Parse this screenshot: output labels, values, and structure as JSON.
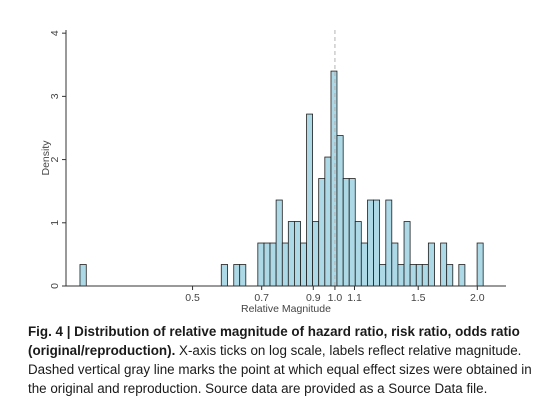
{
  "chart_data": {
    "type": "bar",
    "xlabel": "Relative Magnitude",
    "ylabel": "Density",
    "x_scale": "log",
    "x_ticks": [
      {
        "value": 0.5,
        "label": "0.5"
      },
      {
        "value": 0.7,
        "label": "0.7"
      },
      {
        "value": 0.9,
        "label": "0.9"
      },
      {
        "value": 1.0,
        "label": "1.0"
      },
      {
        "value": 1.1,
        "label": "1.1"
      },
      {
        "value": 1.5,
        "label": "1.5"
      },
      {
        "value": 2.0,
        "label": "2.0"
      }
    ],
    "y_ticks": [
      {
        "value": 0,
        "label": "0"
      },
      {
        "value": 1,
        "label": "1"
      },
      {
        "value": 2,
        "label": "2"
      },
      {
        "value": 3,
        "label": "3"
      },
      {
        "value": 4,
        "label": "4"
      }
    ],
    "xlim": [
      0.27,
      2.3
    ],
    "ylim": [
      0,
      4.05
    ],
    "bar_fill": "#add8e6",
    "bar_stroke": "#1f1f1f",
    "reference_line": {
      "x": 1.0,
      "color": "#b3b3b3",
      "style": "dashed"
    },
    "grid": false,
    "bars": [
      {
        "x0": 0.289,
        "x1": 0.298,
        "density": 0.34
      },
      {
        "x0": 0.575,
        "x1": 0.593,
        "density": 0.34
      },
      {
        "x0": 0.611,
        "x1": 0.629,
        "density": 0.34
      },
      {
        "x0": 0.629,
        "x1": 0.648,
        "density": 0.34
      },
      {
        "x0": 0.687,
        "x1": 0.708,
        "density": 0.68
      },
      {
        "x0": 0.708,
        "x1": 0.729,
        "density": 0.68
      },
      {
        "x0": 0.729,
        "x1": 0.751,
        "density": 0.68
      },
      {
        "x0": 0.751,
        "x1": 0.774,
        "density": 1.36
      },
      {
        "x0": 0.774,
        "x1": 0.797,
        "density": 0.68
      },
      {
        "x0": 0.797,
        "x1": 0.821,
        "density": 1.02
      },
      {
        "x0": 0.821,
        "x1": 0.846,
        "density": 1.02
      },
      {
        "x0": 0.846,
        "x1": 0.871,
        "density": 0.68
      },
      {
        "x0": 0.871,
        "x1": 0.897,
        "density": 2.72
      },
      {
        "x0": 0.897,
        "x1": 0.924,
        "density": 1.02
      },
      {
        "x0": 0.924,
        "x1": 0.952,
        "density": 1.7
      },
      {
        "x0": 0.952,
        "x1": 0.981,
        "density": 2.04
      },
      {
        "x0": 0.981,
        "x1": 1.01,
        "density": 3.4
      },
      {
        "x0": 1.01,
        "x1": 1.041,
        "density": 2.38
      },
      {
        "x0": 1.041,
        "x1": 1.072,
        "density": 1.7
      },
      {
        "x0": 1.072,
        "x1": 1.104,
        "density": 1.7
      },
      {
        "x0": 1.104,
        "x1": 1.137,
        "density": 1.02
      },
      {
        "x0": 1.137,
        "x1": 1.172,
        "density": 0.68
      },
      {
        "x0": 1.172,
        "x1": 1.207,
        "density": 1.36
      },
      {
        "x0": 1.207,
        "x1": 1.243,
        "density": 1.36
      },
      {
        "x0": 1.243,
        "x1": 1.281,
        "density": 0.34
      },
      {
        "x0": 1.281,
        "x1": 1.319,
        "density": 1.36
      },
      {
        "x0": 1.319,
        "x1": 1.359,
        "density": 0.68
      },
      {
        "x0": 1.359,
        "x1": 1.4,
        "density": 0.34
      },
      {
        "x0": 1.4,
        "x1": 1.442,
        "density": 1.02
      },
      {
        "x0": 1.442,
        "x1": 1.486,
        "density": 0.34
      },
      {
        "x0": 1.486,
        "x1": 1.53,
        "density": 0.34
      },
      {
        "x0": 1.53,
        "x1": 1.576,
        "density": 0.34
      },
      {
        "x0": 1.576,
        "x1": 1.624,
        "density": 0.68
      },
      {
        "x0": 1.673,
        "x1": 1.723,
        "density": 0.68
      },
      {
        "x0": 1.723,
        "x1": 1.775,
        "density": 0.34
      },
      {
        "x0": 1.828,
        "x1": 1.883,
        "density": 0.34
      },
      {
        "x0": 1.998,
        "x1": 2.058,
        "density": 0.68
      }
    ]
  },
  "caption": {
    "lead": "Fig. 4 | Distribution of relative magnitude of hazard ratio, risk ratio, odds ratio (original/reproduction).",
    "body": " X-axis ticks on log scale, labels reflect relative magnitude. Dashed vertical gray line marks the point at which equal effect sizes were obtained in the original and reproduction. Source data are provided as a Source Data file."
  }
}
